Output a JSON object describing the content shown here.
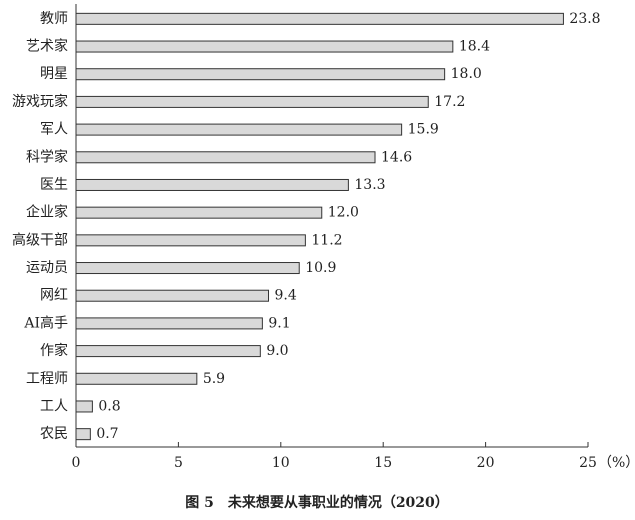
{
  "chart_data": {
    "type": "bar",
    "orientation": "horizontal",
    "title": "图 5　未来想要从事职业的情况（2020）",
    "x_label": "（%）",
    "categories": [
      "教师",
      "艺术家",
      "明星",
      "游戏玩家",
      "军人",
      "科学家",
      "医生",
      "企业家",
      "高级干部",
      "运动员",
      "网红",
      "AI高手",
      "作家",
      "工程师",
      "工人",
      "农民"
    ],
    "values": [
      23.8,
      18.4,
      18.0,
      17.2,
      15.9,
      14.6,
      13.3,
      12.0,
      11.2,
      10.9,
      9.4,
      9.1,
      9.0,
      5.9,
      0.8,
      0.7
    ],
    "value_labels": [
      "23.8",
      "18.4",
      "18.0",
      "17.2",
      "15.9",
      "14.6",
      "13.3",
      "12.0",
      "11.2",
      "10.9",
      "9.4",
      "9.1",
      "9.0",
      "5.9",
      "0.8",
      "0.7"
    ],
    "color": "#d9d9d9",
    "xlim": [
      0,
      25
    ],
    "xticks": [
      0,
      5,
      10,
      15,
      20,
      25
    ],
    "grid": false
  }
}
